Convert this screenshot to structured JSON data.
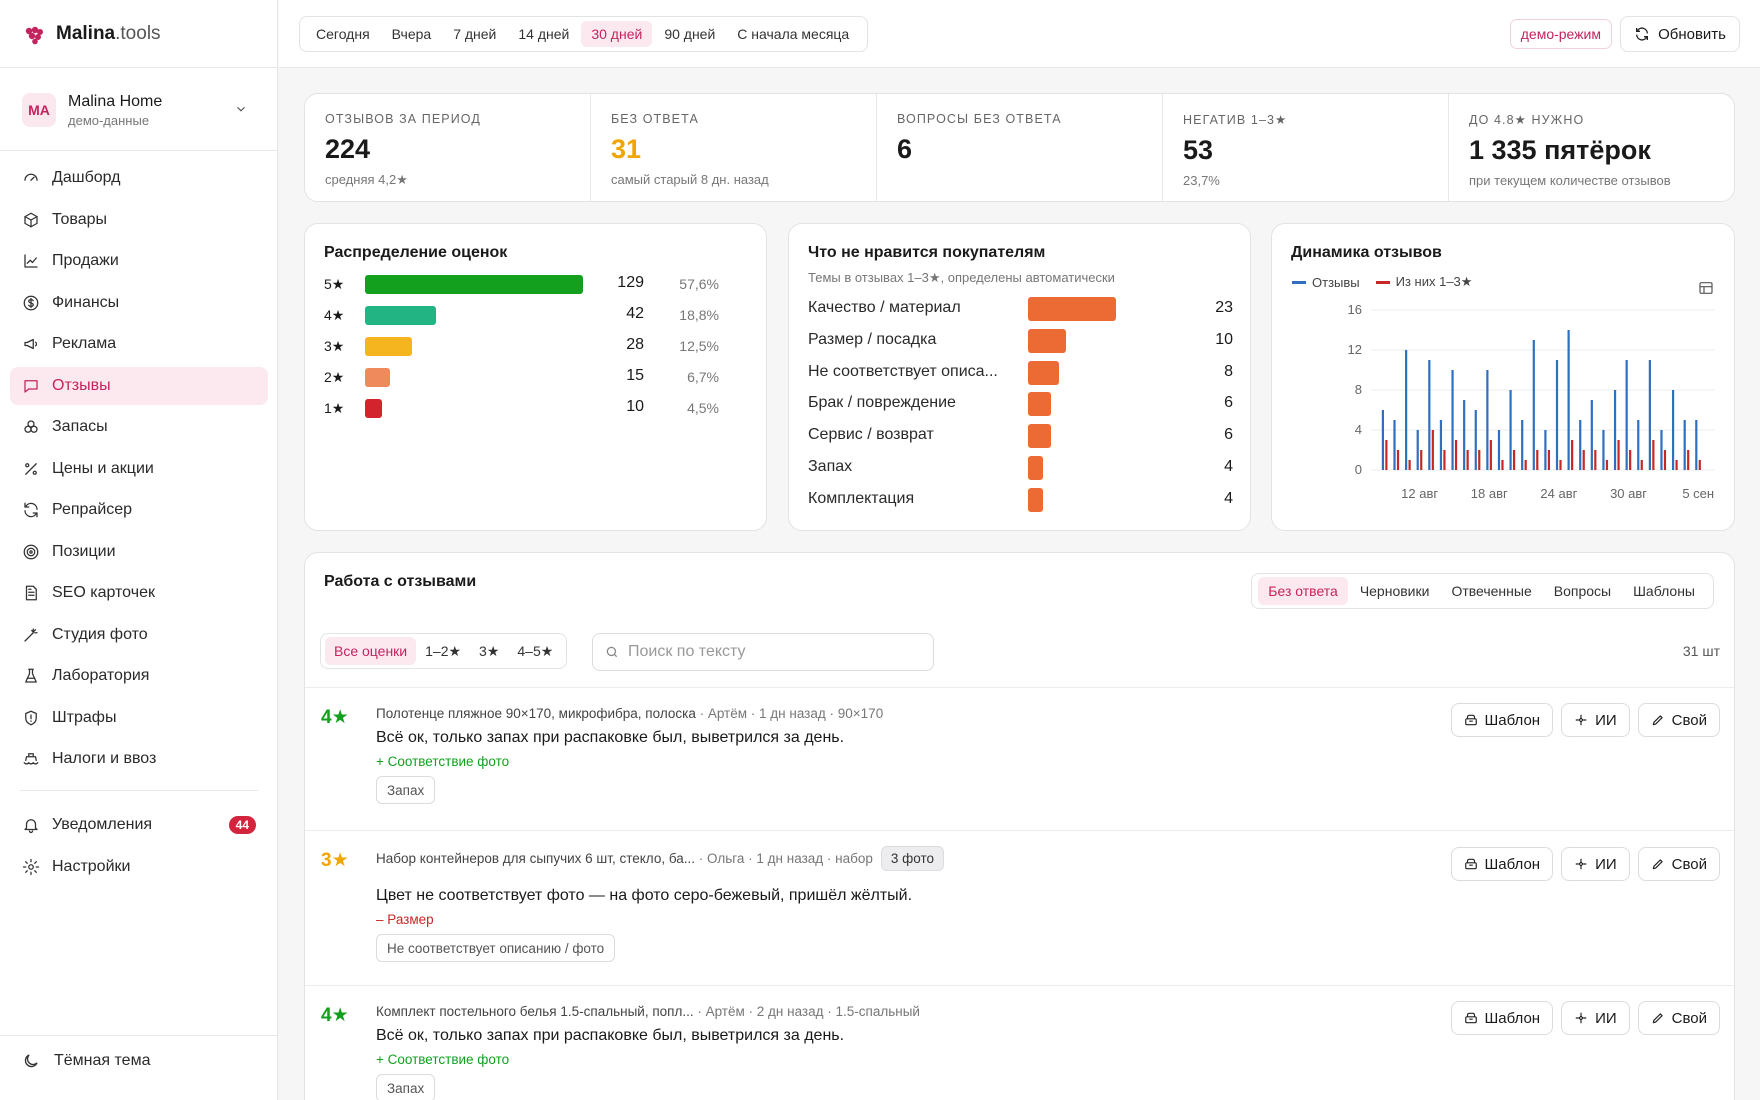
{
  "app": {
    "logo_main": "Malina",
    "logo_tld": ".tools"
  },
  "shop": {
    "initials": "MA",
    "name": "Malina Home",
    "subtitle": "демо-данные"
  },
  "nav": [
    {
      "label": "Дашборд",
      "icon": "dashboard-icon"
    },
    {
      "label": "Товары",
      "icon": "box-icon"
    },
    {
      "label": "Продажи",
      "icon": "chart-line-icon"
    },
    {
      "label": "Финансы",
      "icon": "dollar-icon"
    },
    {
      "label": "Реклама",
      "icon": "megaphone-icon"
    },
    {
      "label": "Отзывы",
      "icon": "message-icon",
      "active": true
    },
    {
      "label": "Запасы",
      "icon": "boxes-icon"
    },
    {
      "label": "Цены и акции",
      "icon": "percent-icon"
    },
    {
      "label": "Репрайсер",
      "icon": "refresh-icon"
    },
    {
      "label": "Позиции",
      "icon": "target-icon"
    },
    {
      "label": "SEO карточек",
      "icon": "file-icon"
    },
    {
      "label": "Студия фото",
      "icon": "wand-icon"
    },
    {
      "label": "Лаборатория",
      "icon": "flask-icon"
    },
    {
      "label": "Штрафы",
      "icon": "shield-icon"
    },
    {
      "label": "Налоги и ввоз",
      "icon": "ship-icon"
    }
  ],
  "nav_bottom": [
    {
      "label": "Уведомления",
      "icon": "bell-icon",
      "badge": "44"
    },
    {
      "label": "Настройки",
      "icon": "gear-icon"
    }
  ],
  "theme_label": "Тёмная тема",
  "periods": [
    "Сегодня",
    "Вчера",
    "7 дней",
    "14 дней",
    "30 дней",
    "90 дней",
    "С начала месяца"
  ],
  "active_period": "30 дней",
  "demo_label": "демо-режим",
  "refresh_label": "Обновить",
  "kpis": [
    {
      "label": "Отзывов за период",
      "value": "224",
      "sub": "средняя 4,2★",
      "color": "#1a1a1a"
    },
    {
      "label": "Без ответа",
      "value": "31",
      "sub": "самый старый 8 дн. назад",
      "color": "#f0a500"
    },
    {
      "label": "Вопросы без ответа",
      "value": "6",
      "sub": "",
      "color": "#1a1a1a"
    },
    {
      "label": "Негатив 1–3★",
      "value": "53",
      "sub": "23,7%",
      "color": "#1a1a1a"
    },
    {
      "label": "До 4.8★ нужно",
      "value": "1 335 пятёрок",
      "sub": "при текущем количестве отзывов",
      "color": "#1a1a1a"
    }
  ],
  "distribution": {
    "title": "Распределение оценок",
    "rows": [
      {
        "star": "5★",
        "count": 129,
        "pct": "57,6%",
        "color": "#13a01e"
      },
      {
        "star": "4★",
        "count": 42,
        "pct": "18,8%",
        "color": "#22b583"
      },
      {
        "star": "3★",
        "count": 28,
        "pct": "12,5%",
        "color": "#f5b51e"
      },
      {
        "star": "2★",
        "count": 15,
        "pct": "6,7%",
        "color": "#ef8a5c"
      },
      {
        "star": "1★",
        "count": 10,
        "pct": "4,5%",
        "color": "#d3242d"
      }
    ]
  },
  "topics": {
    "title": "Что не нравится покупателям",
    "subtitle": "Темы в отзывах 1–3★, определены автоматически",
    "rows": [
      {
        "label": "Качество / материал",
        "count": 23
      },
      {
        "label": "Размер / посадка",
        "count": 10
      },
      {
        "label": "Не соответствует описа...",
        "count": 8
      },
      {
        "label": "Брак / повреждение",
        "count": 6
      },
      {
        "label": "Сервис / возврат",
        "count": 6
      },
      {
        "label": "Запах",
        "count": 4
      },
      {
        "label": "Комплектация",
        "count": 4
      }
    ]
  },
  "chart_data": {
    "type": "bar",
    "title": "Динамика отзывов",
    "x": [
      "08-09",
      "08-10",
      "08-11",
      "08-12",
      "08-13",
      "08-14",
      "08-15",
      "08-16",
      "08-17",
      "08-18",
      "08-19",
      "08-20",
      "08-21",
      "08-22",
      "08-23",
      "08-24",
      "08-25",
      "08-26",
      "08-27",
      "08-28",
      "08-29",
      "08-30",
      "08-31",
      "09-01",
      "09-02",
      "09-03",
      "09-04",
      "09-05"
    ],
    "tick_labels": [
      {
        "at": "08-12",
        "label": "12 авг"
      },
      {
        "at": "08-18",
        "label": "18 авг"
      },
      {
        "at": "08-24",
        "label": "24 авг"
      },
      {
        "at": "08-30",
        "label": "30 авг"
      },
      {
        "at": "09-05",
        "label": "5 сен"
      }
    ],
    "yticks": [
      0,
      4,
      8,
      12,
      16
    ],
    "ylim": [
      0,
      16
    ],
    "series": [
      {
        "name": "Отзывы",
        "color": "#2f6fc0",
        "values": [
          6,
          5,
          12,
          4,
          11,
          5,
          10,
          7,
          6,
          10,
          4,
          8,
          5,
          13,
          4,
          11,
          14,
          5,
          7,
          4,
          8,
          11,
          5,
          11,
          4,
          8,
          5,
          5
        ]
      },
      {
        "name": "Из них 1–3★",
        "color": "#c62828",
        "values": [
          3,
          2,
          1,
          2,
          4,
          2,
          3,
          2,
          2,
          3,
          1,
          2,
          1,
          2,
          2,
          1,
          3,
          2,
          2,
          1,
          3,
          2,
          1,
          3,
          2,
          1,
          2,
          1
        ]
      }
    ],
    "legend": "top-left"
  },
  "work": {
    "title": "Работа с отзывами",
    "tabs": [
      "Без ответа",
      "Черновики",
      "Отвеченные",
      "Вопросы",
      "Шаблоны"
    ],
    "rating_filters": [
      "Все оценки",
      "1–2★",
      "3★",
      "4–5★"
    ],
    "search_placeholder": "Поиск по тексту",
    "count": "31 шт",
    "btn_template": "Шаблон",
    "btn_ai": "ИИ",
    "btn_own": "Свой",
    "reviews": [
      {
        "stars": "4★",
        "star_color": "#13a01e",
        "product": "Полотенце пляжное 90×170, микрофибра, полоска",
        "meta": "· Артём · 1 дн назад",
        "variant": "· 90×170",
        "photos": "",
        "text": "Всё ок, только запах при распаковке был, выветрился за день.",
        "tag": "+ Соответствие фото",
        "tag_color": "#13a01e",
        "chip": "Запах"
      },
      {
        "stars": "3★",
        "star_color": "#f0a500",
        "product": "Набор контейнеров для сыпучих 6 шт, стекло, ба...",
        "meta": "· Ольга · 1 дн назад",
        "variant": "· набор",
        "photos": "3 фото",
        "text": "Цвет не соответствует фото — на фото серо-бежевый, пришёл жёлтый.",
        "tag": "– Размер",
        "tag_color": "#c62828",
        "chip": "Не соответствует описанию / фото"
      },
      {
        "stars": "4★",
        "star_color": "#13a01e",
        "product": "Комплект постельного белья 1.5-спальный, попл...",
        "meta": "· Артём · 2 дн назад",
        "variant": "· 1.5-спальный",
        "photos": "",
        "text": "Всё ок, только запах при распаковке был, выветрился за день.",
        "tag": "+ Соответствие фото",
        "tag_color": "#13a01e",
        "chip": "Запах"
      }
    ]
  }
}
